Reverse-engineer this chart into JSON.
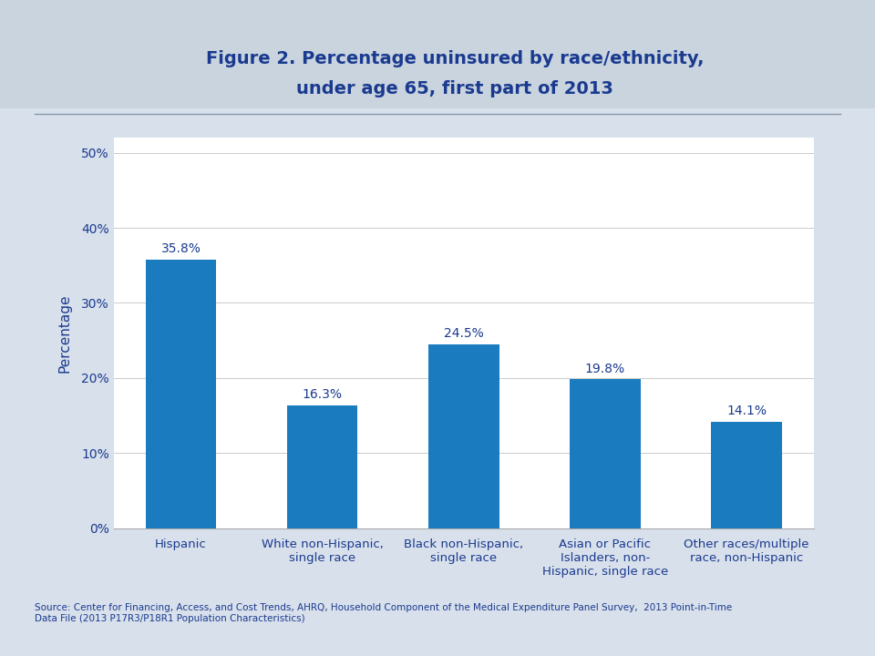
{
  "title_line1": "Figure 2. Percentage uninsured by race/ethnicity,",
  "title_line2": "under age 65, first part of 2013",
  "title_color": "#1a3a8f",
  "categories": [
    "Hispanic",
    "White non-Hispanic,\nsingle race",
    "Black non-Hispanic,\nsingle race",
    "Asian or Pacific\nIslanders, non-\nHispanic, single race",
    "Other races/multiple\nrace, non-Hispanic"
  ],
  "values": [
    35.8,
    16.3,
    24.5,
    19.8,
    14.1
  ],
  "labels": [
    "35.8%",
    "16.3%",
    "24.5%",
    "19.8%",
    "14.1%"
  ],
  "bar_color": "#1a7bbf",
  "ylabel": "Percentage",
  "ylabel_color": "#1a3a8f",
  "yticks": [
    0,
    10,
    20,
    30,
    40,
    50
  ],
  "ytick_labels": [
    "0%",
    "10%",
    "20%",
    "30%",
    "40%",
    "50%"
  ],
  "ylim": [
    0,
    52
  ],
  "tick_color": "#1a3a8f",
  "label_color": "#1a3a8f",
  "source_text": "Source: Center for Financing, Access, and Cost Trends, AHRQ, Household Component of the Medical Expenditure Panel Survey,  2013 Point-in-Time\nData File (2013 P17R3/P18R1 Population Characteristics)",
  "source_color": "#1a3a8f",
  "bg_color": "#d8e0eb",
  "plot_bg_color": "#ffffff",
  "header_bg_color": "#c5ced e",
  "separator_color": "#8899bb"
}
